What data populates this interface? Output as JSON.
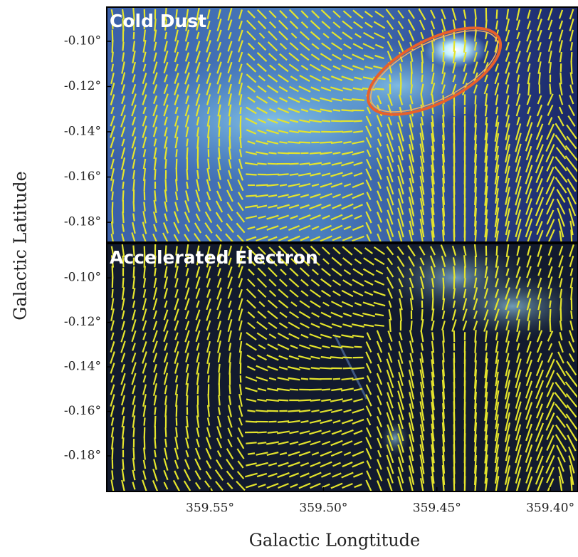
{
  "chart_data": {
    "type": "image-panels",
    "xlabel": "Galactic Longtitude",
    "ylabel": "Galactic Latitude",
    "xlim": [
      359.5955,
      359.3878
    ],
    "xticks": [
      {
        "value": 359.55,
        "label": "359.55°"
      },
      {
        "value": 359.5,
        "label": "359.50°"
      },
      {
        "value": 359.45,
        "label": "359.45°"
      },
      {
        "value": 359.4,
        "label": "359.40°"
      }
    ],
    "panels": [
      {
        "title": "Cold Dust",
        "ylim": [
          -0.1888,
          -0.0849
        ],
        "yticks": [
          {
            "value": -0.1,
            "label": "-0.10°"
          },
          {
            "value": -0.12,
            "label": "-0.12°"
          },
          {
            "value": -0.14,
            "label": "-0.14°"
          },
          {
            "value": -0.16,
            "label": "-0.16°"
          },
          {
            "value": -0.18,
            "label": "-0.18°"
          }
        ]
      },
      {
        "title": "Accelerated Electron",
        "ylim": [
          -0.196,
          -0.0846
        ],
        "yticks": [
          {
            "value": -0.1,
            "label": "-0.10°"
          },
          {
            "value": -0.12,
            "label": "-0.12°"
          },
          {
            "value": -0.14,
            "label": "-0.14°"
          },
          {
            "value": -0.16,
            "label": "-0.16°"
          },
          {
            "value": -0.18,
            "label": "-0.18°"
          }
        ]
      }
    ]
  }
}
